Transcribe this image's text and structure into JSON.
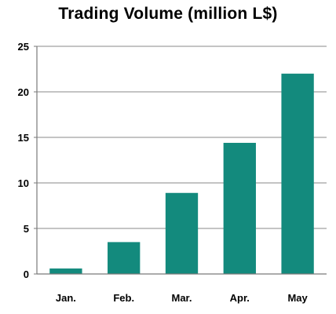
{
  "chart_data": {
    "type": "bar",
    "title": "Trading Volume (million L$)",
    "xlabel": "",
    "ylabel": "",
    "categories": [
      "Jan.",
      "Feb.",
      "Mar.",
      "Apr.",
      "May"
    ],
    "values": [
      0.6,
      3.5,
      8.9,
      14.4,
      22.0
    ],
    "ylim": [
      0,
      25
    ],
    "yticks": [
      0,
      5,
      10,
      15,
      20,
      25
    ],
    "grid": "horizontal",
    "legend": "none",
    "bar_color": "#138a7d"
  }
}
